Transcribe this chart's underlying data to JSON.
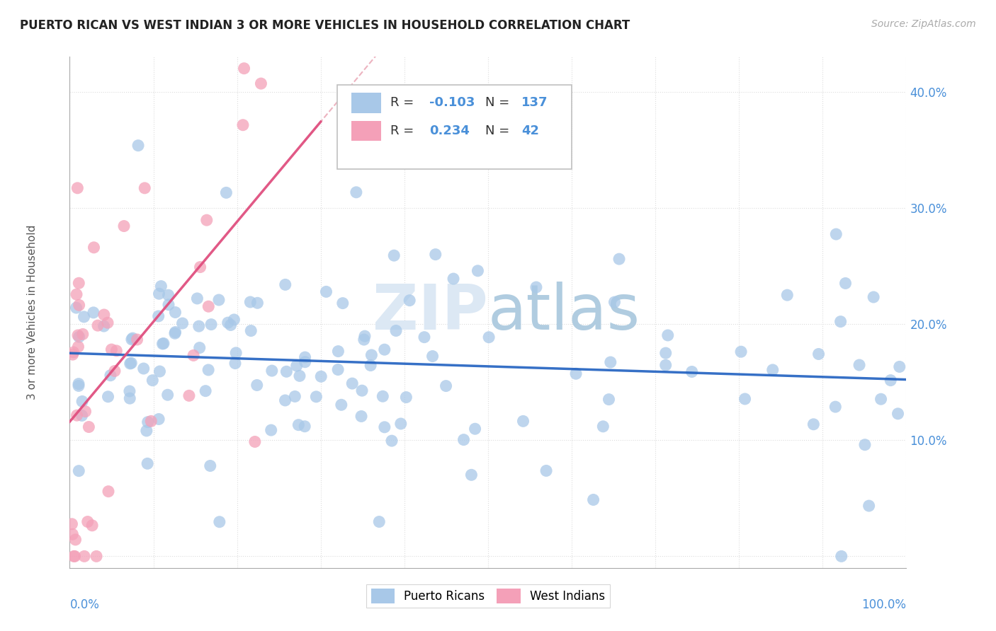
{
  "title": "PUERTO RICAN VS WEST INDIAN 3 OR MORE VEHICLES IN HOUSEHOLD CORRELATION CHART",
  "source": "Source: ZipAtlas.com",
  "ylabel": "3 or more Vehicles in Household",
  "x_range": [
    0.0,
    1.0
  ],
  "y_range": [
    -0.01,
    0.43
  ],
  "pr_color": "#a8c8e8",
  "wi_color": "#f4a0b8",
  "pr_line_color": "#2060c0",
  "wi_line_color": "#e05080",
  "wi_dashed_color": "#e8a0b0",
  "tick_color": "#4a90d9",
  "background_color": "#ffffff",
  "grid_color": "#dddddd",
  "watermark_color": "#dce8f4",
  "legend_pr_R": "-0.103",
  "legend_pr_N": "137",
  "legend_wi_R": "0.234",
  "legend_wi_N": "42"
}
